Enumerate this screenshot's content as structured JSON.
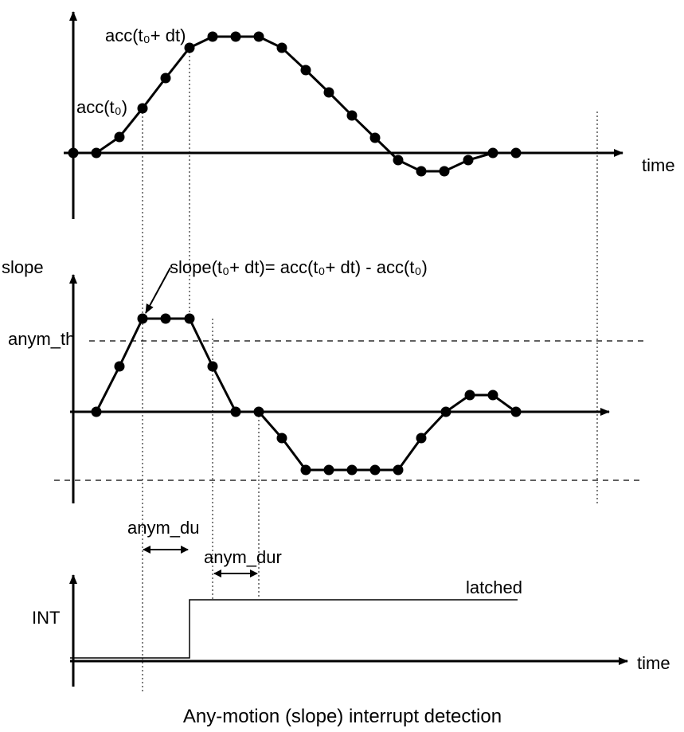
{
  "labels": {
    "time_top": "time",
    "time_bottom": "time",
    "acc_t0": "acc(t₀)",
    "acc_t0_dt": "acc(t₀+ dt)",
    "slope_axis": "slope",
    "slope_formula": "slope(t₀+ dt)= acc(t₀+ dt)  -  acc(t₀)",
    "anym_th": "anym_th",
    "anym_du_1": "anym_du",
    "anym_du_2": "anym_dur",
    "latched": "latched",
    "int": "INT",
    "caption": "Any-motion (slope) interrupt detection"
  },
  "colors": {
    "ink": "#000000",
    "background": "#ffffff"
  }
}
